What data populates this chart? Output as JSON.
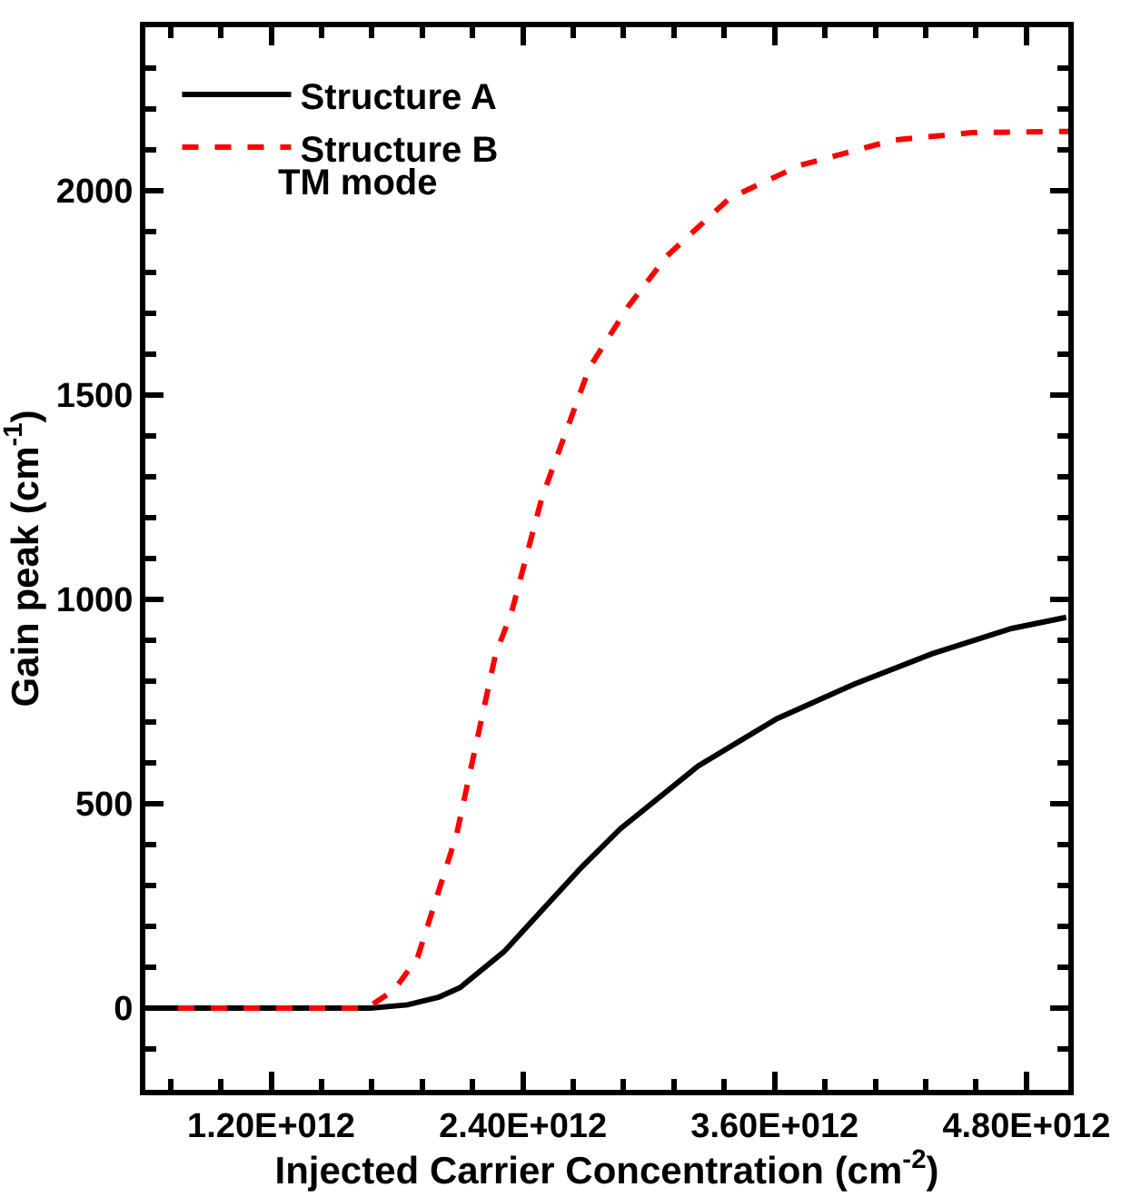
{
  "chart_data": {
    "type": "line",
    "xlabel": "Injected Carrier Concentration (cm$^{-2}$)",
    "ylabel": "Gain peak (cm$^{-1}$)",
    "xlim": [
      600000000000.0,
      5000000000000.0
    ],
    "ylim": [
      -200,
      2400
    ],
    "xticks": [
      {
        "value": 720000000000.0,
        "label": null
      },
      {
        "value": 960000000000.0,
        "label": null
      },
      {
        "value": 1200000000000.0,
        "label": "1.20E+012"
      },
      {
        "value": 1440000000000.0,
        "label": null
      },
      {
        "value": 1680000000000.0,
        "label": null
      },
      {
        "value": 1920000000000.0,
        "label": null
      },
      {
        "value": 2160000000000.0,
        "label": null
      },
      {
        "value": 2400000000000.0,
        "label": "2.40E+012"
      },
      {
        "value": 2640000000000.0,
        "label": null
      },
      {
        "value": 2880000000000.0,
        "label": null
      },
      {
        "value": 3120000000000.0,
        "label": null
      },
      {
        "value": 3360000000000.0,
        "label": null
      },
      {
        "value": 3600000000000.0,
        "label": "3.60E+012"
      },
      {
        "value": 3840000000000.0,
        "label": null
      },
      {
        "value": 4080000000000.0,
        "label": null
      },
      {
        "value": 4320000000000.0,
        "label": null
      },
      {
        "value": 4560000000000.0,
        "label": null
      },
      {
        "value": 4800000000000.0,
        "label": "4.80E+012"
      }
    ],
    "yticks": [
      {
        "value": -100,
        "label": null
      },
      0,
      {
        "value": 100,
        "label": null
      },
      {
        "value": 200,
        "label": null
      },
      {
        "value": 300,
        "label": null
      },
      {
        "value": 400,
        "label": null
      },
      500,
      {
        "value": 600,
        "label": null
      },
      {
        "value": 700,
        "label": null
      },
      {
        "value": 800,
        "label": null
      },
      {
        "value": 900,
        "label": null
      },
      1000,
      {
        "value": 1100,
        "label": null
      },
      {
        "value": 1200,
        "label": null
      },
      {
        "value": 1300,
        "label": null
      },
      {
        "value": 1400,
        "label": null
      },
      1500,
      {
        "value": 1600,
        "label": null
      },
      {
        "value": 1700,
        "label": null
      },
      {
        "value": 1800,
        "label": null
      },
      {
        "value": 1900,
        "label": null
      },
      2000,
      {
        "value": 2100,
        "label": null
      },
      {
        "value": 2200,
        "label": null
      },
      {
        "value": 2300,
        "label": null
      }
    ],
    "legend": "top left",
    "marker": "none",
    "annotations": [
      "TM mode"
    ],
    "series": [
      {
        "name": "Structure A",
        "color": "#000000",
        "line_style": "solid",
        "x": [
          600000000000.0,
          1000000000000.0,
          1400000000000.0,
          1674000000000.0,
          1850000000000.0,
          2000000000000.0,
          2100000000000.0,
          2310000000000.0,
          2490000000000.0,
          2680000000000.0,
          2865000000000.0,
          3237000000000.0,
          3610000000000.0,
          3980000000000.0,
          4350000000000.0,
          4730000000000.0,
          4990000000000.0
        ],
        "values": [
          0,
          0,
          0,
          0,
          8,
          27,
          50,
          138,
          239,
          345,
          439,
          593,
          708,
          793,
          867,
          929,
          956
        ]
      },
      {
        "name": "Structure B",
        "color": "#ff0000",
        "line_style": "dashed",
        "x": [
          600000000000.0,
          1000000000000.0,
          1400000000000.0,
          1656000000000.0,
          1786000000000.0,
          1898000000000.0,
          2084000000000.0,
          2270000000000.0,
          2344000000000.0,
          2490000000000.0,
          2716000000000.0,
          2902000000000.0,
          3088000000000.0,
          3386000000000.0,
          3720000000000.0,
          4167000000000.0,
          4540000000000.0,
          4910000000000.0,
          5000000000000.0
        ],
        "values": [
          0,
          0,
          0,
          0,
          44,
          124,
          425,
          867,
          965,
          1248,
          1566,
          1717,
          1841,
          1982,
          2062,
          2124,
          2142,
          2145,
          2145
        ]
      }
    ]
  }
}
